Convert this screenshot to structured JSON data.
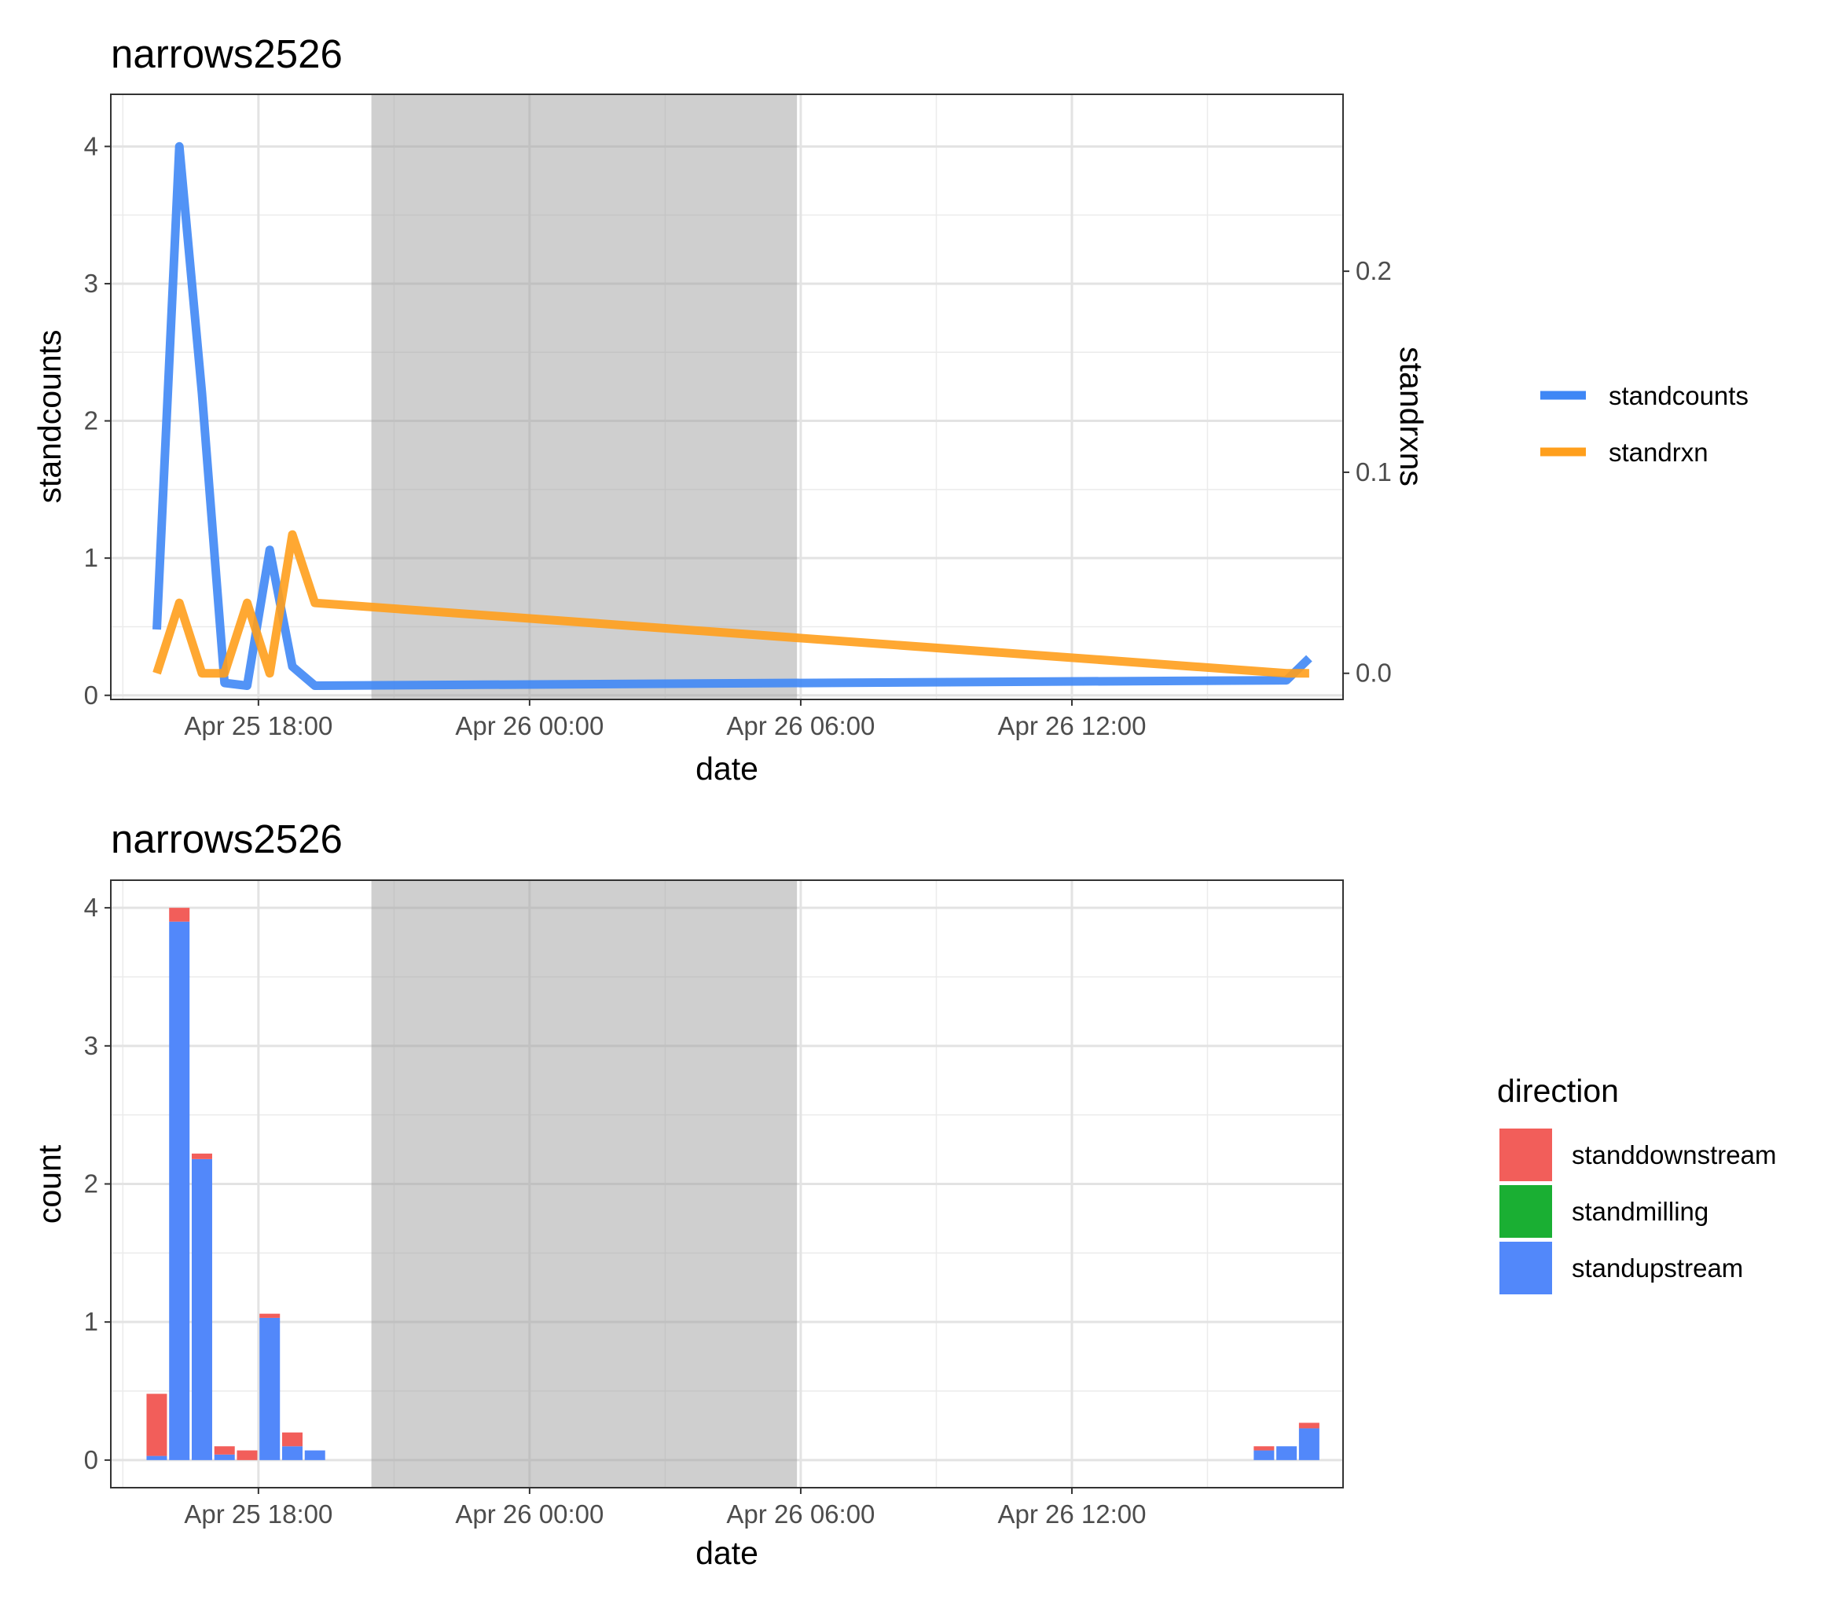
{
  "chart_data": [
    {
      "type": "line",
      "title": "narrows2526",
      "xlabel": "date",
      "ylabel": "standcounts",
      "y2label": "standrxns",
      "ylim": [
        -0.03,
        4.38
      ],
      "y2lim": [
        -0.013,
        0.288
      ],
      "yticks": [
        0,
        1,
        2,
        3,
        4
      ],
      "y2ticks": [
        0.0,
        0.1,
        0.2
      ],
      "y2tick_labels": [
        "0.0",
        "0.1",
        "0.2"
      ],
      "xlim": [
        "2026-04-25 14:44",
        "2026-04-26 18:00"
      ],
      "xticks": [
        "2026-04-25 18:00",
        "2026-04-26 00:00",
        "2026-04-26 06:00",
        "2026-04-26 12:00"
      ],
      "xtick_labels": [
        "Apr 25 18:00",
        "Apr 26 00:00",
        "Apr 26 06:00",
        "Apr 26 12:00"
      ],
      "night_shading": [
        "2026-04-25 20:30",
        "2026-04-26 05:55"
      ],
      "grid": true,
      "legend_position": "right",
      "series": [
        {
          "name": "standcounts",
          "axis": "left",
          "color": "#3f87f5",
          "x": [
            "2026-04-25 15:45",
            "2026-04-25 16:15",
            "2026-04-25 16:45",
            "2026-04-25 17:15",
            "2026-04-25 17:45",
            "2026-04-25 18:15",
            "2026-04-25 18:45",
            "2026-04-25 19:15",
            "2026-04-26 16:45",
            "2026-04-26 17:15"
          ],
          "values": [
            0.48,
            4.0,
            2.2,
            0.09,
            0.07,
            1.06,
            0.21,
            0.07,
            0.11,
            0.27
          ]
        },
        {
          "name": "standrxn",
          "axis": "right",
          "color": "#ff9f1c",
          "x": [
            "2026-04-25 15:45",
            "2026-04-25 16:15",
            "2026-04-25 16:45",
            "2026-04-25 17:15",
            "2026-04-25 17:45",
            "2026-04-25 18:15",
            "2026-04-25 18:45",
            "2026-04-25 19:15",
            "2026-04-26 16:45",
            "2026-04-26 17:15"
          ],
          "values": [
            0.0,
            0.035,
            0.0,
            0.0,
            0.035,
            0.0,
            0.069,
            0.035,
            0.0,
            0.0
          ]
        }
      ]
    },
    {
      "type": "bar",
      "stacked": true,
      "title": "narrows2526",
      "xlabel": "date",
      "ylabel": "count",
      "ylim": [
        -0.2,
        4.2
      ],
      "yticks": [
        0,
        1,
        2,
        3,
        4
      ],
      "xlim": [
        "2026-04-25 14:44",
        "2026-04-26 18:00"
      ],
      "xticks": [
        "2026-04-25 18:00",
        "2026-04-26 00:00",
        "2026-04-26 06:00",
        "2026-04-26 12:00"
      ],
      "xtick_labels": [
        "Apr 25 18:00",
        "Apr 26 00:00",
        "Apr 26 06:00",
        "Apr 26 12:00"
      ],
      "night_shading": [
        "2026-04-25 20:30",
        "2026-04-26 05:55"
      ],
      "grid": true,
      "legend_position": "right",
      "legend_title": "direction",
      "x": [
        "2026-04-25 15:45",
        "2026-04-25 16:15",
        "2026-04-25 16:45",
        "2026-04-25 17:15",
        "2026-04-25 17:45",
        "2026-04-25 18:15",
        "2026-04-25 18:45",
        "2026-04-25 19:15",
        "2026-04-26 16:15",
        "2026-04-26 16:45",
        "2026-04-26 17:15"
      ],
      "series": [
        {
          "name": "standupstream",
          "color": "#5288fa",
          "values": [
            0.03,
            3.9,
            2.18,
            0.04,
            0.0,
            1.03,
            0.1,
            0.07,
            0.07,
            0.1,
            0.23
          ]
        },
        {
          "name": "standmilling",
          "color": "#1aaf33",
          "values": [
            0,
            0,
            0,
            0,
            0,
            0,
            0,
            0,
            0,
            0,
            0
          ]
        },
        {
          "name": "standdownstream",
          "color": "#f25e5a",
          "values": [
            0.45,
            0.1,
            0.04,
            0.06,
            0.07,
            0.03,
            0.1,
            0.0,
            0.03,
            0.0,
            0.04
          ]
        }
      ],
      "legend_order": [
        "standdownstream",
        "standmilling",
        "standupstream"
      ]
    }
  ]
}
